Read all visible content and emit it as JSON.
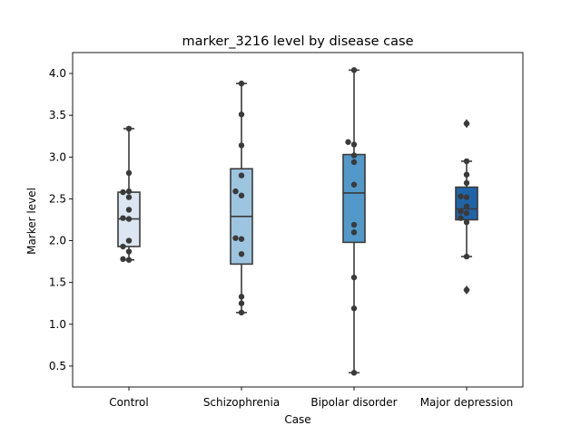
{
  "chart_data": {
    "type": "box",
    "title": "marker_3216 level by disease case",
    "xlabel": "Case",
    "ylabel": "Marker level",
    "ylim": [
      0.25,
      4.25
    ],
    "yticks": [
      0.5,
      1.0,
      1.5,
      2.0,
      2.5,
      3.0,
      3.5,
      4.0
    ],
    "ytick_labels": [
      "0.5",
      "1.0",
      "1.5",
      "2.0",
      "2.5",
      "3.0",
      "3.5",
      "4.0"
    ],
    "categories": [
      "Control",
      "Schizophrenia",
      "Bipolar disorder",
      "Major depression"
    ],
    "colors": [
      "#dbe6f2",
      "#9ec5df",
      "#5299c9",
      "#1f64a7"
    ],
    "boxes": [
      {
        "q1": 1.93,
        "median": 2.26,
        "q3": 2.58,
        "whisker_low": 1.77,
        "whisker_high": 3.34,
        "outliers": []
      },
      {
        "q1": 1.72,
        "median": 2.29,
        "q3": 2.86,
        "whisker_low": 1.14,
        "whisker_high": 3.88,
        "outliers": []
      },
      {
        "q1": 1.98,
        "median": 2.57,
        "q3": 3.03,
        "whisker_low": 0.42,
        "whisker_high": 4.04,
        "outliers": []
      },
      {
        "q1": 2.25,
        "median": 2.38,
        "q3": 2.64,
        "whisker_low": 1.81,
        "whisker_high": 2.95,
        "outliers": [
          3.4,
          1.41
        ]
      }
    ],
    "points": [
      [
        1.77,
        1.78,
        1.87,
        1.93,
        2.0,
        2.26,
        2.27,
        2.37,
        2.52,
        2.58,
        2.59,
        2.81,
        3.34
      ],
      [
        1.14,
        1.25,
        1.33,
        1.84,
        2.02,
        2.03,
        2.54,
        2.59,
        2.78,
        3.14,
        3.51,
        3.88
      ],
      [
        0.42,
        1.19,
        1.56,
        2.1,
        2.19,
        2.67,
        2.94,
        3.02,
        3.15,
        3.18,
        4.04
      ],
      [
        1.41,
        1.81,
        2.22,
        2.27,
        2.33,
        2.35,
        2.41,
        2.52,
        2.53,
        2.69,
        2.79,
        2.95,
        3.4
      ]
    ]
  }
}
